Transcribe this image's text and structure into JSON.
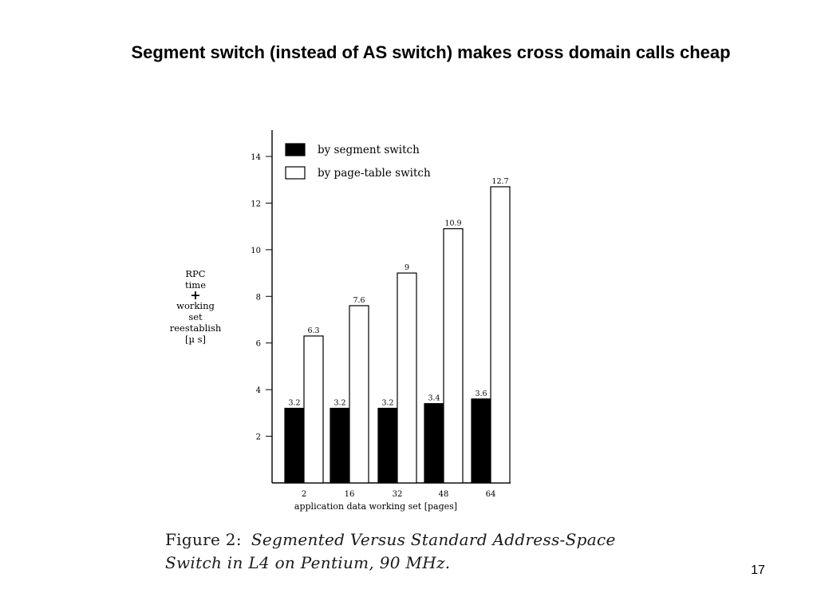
{
  "slide": {
    "title": "Segment switch (instead of AS switch) makes cross domain calls cheap",
    "page_number": "17"
  },
  "figure": {
    "caption_label": "Figure 2:",
    "caption_text_line1": "Segmented Versus Standard Address-Space",
    "caption_text_line2": "Switch in L4 on Pentium, 90 MHz.",
    "ylabel_lines": [
      "RPC",
      "time",
      "+",
      "working",
      "set",
      "reestablish",
      "[µ s]"
    ]
  },
  "chart_data": {
    "type": "bar",
    "categories": [
      "2",
      "16",
      "32",
      "48",
      "64"
    ],
    "series": [
      {
        "name": "by segment switch",
        "values": [
          3.2,
          3.2,
          3.2,
          3.4,
          3.6
        ],
        "value_labels": [
          "3.2",
          "3.2",
          "3.2",
          "3.4",
          "3.6"
        ],
        "fill": "#000000"
      },
      {
        "name": "by page-table switch",
        "values": [
          6.3,
          7.6,
          9,
          10.9,
          12.7
        ],
        "value_labels": [
          "6.3",
          "7.6",
          "9",
          "10.9",
          "12.7"
        ],
        "fill": "#ffffff"
      }
    ],
    "xlabel": "application data working set [pages]",
    "yticks": [
      "2",
      "4",
      "6",
      "8",
      "10",
      "12",
      "14"
    ],
    "ylim": [
      0,
      15
    ],
    "legend_position": "top-left",
    "grid": false
  }
}
